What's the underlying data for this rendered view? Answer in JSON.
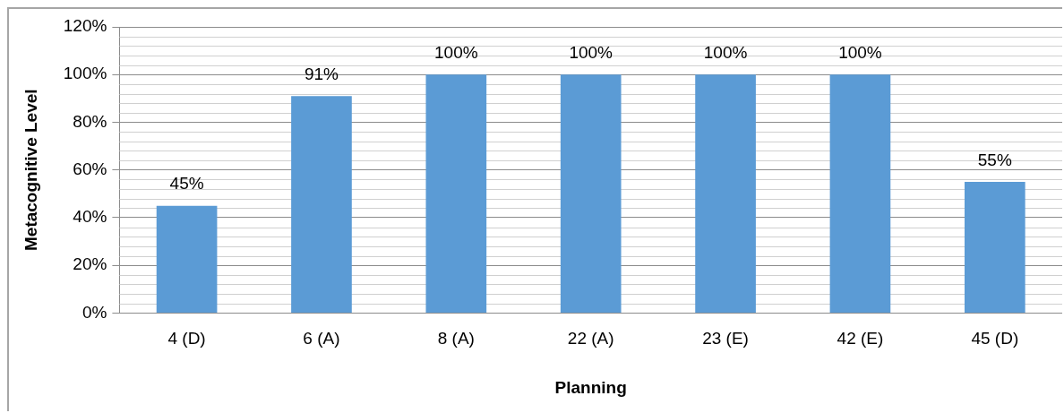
{
  "chart_data": {
    "type": "bar",
    "xlabel": "Planning",
    "ylabel": "Metacognitive Level",
    "categories": [
      "4 (D)",
      "6 (A)",
      "8 (A)",
      "22 (A)",
      "23 (E)",
      "42 (E)",
      "45 (D)"
    ],
    "values": [
      45,
      91,
      100,
      100,
      100,
      100,
      55
    ],
    "value_labels": [
      "45%",
      "91%",
      "100%",
      "100%",
      "100%",
      "100%",
      "55%"
    ],
    "color": "#5b9bd5",
    "ylim": [
      0,
      120
    ],
    "yticks": [
      {
        "value": 0,
        "label": "0%"
      },
      {
        "value": 20,
        "label": "20%"
      },
      {
        "value": 40,
        "label": "40%"
      },
      {
        "value": 60,
        "label": "60%"
      },
      {
        "value": 80,
        "label": "80%"
      },
      {
        "value": 100,
        "label": "100%"
      },
      {
        "value": 120,
        "label": "120%"
      }
    ],
    "grid": "y",
    "legend": false
  }
}
